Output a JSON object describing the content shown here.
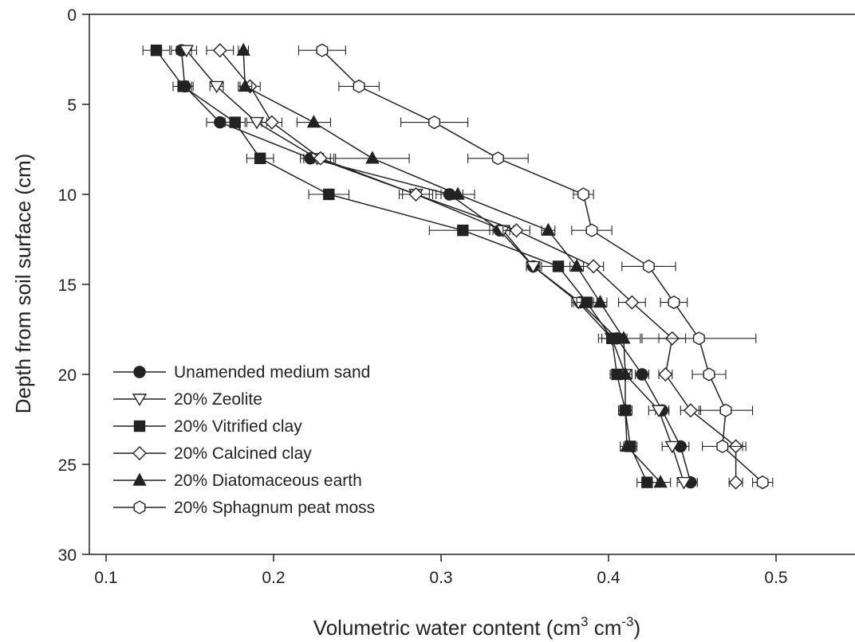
{
  "chart_data": {
    "type": "line",
    "title": "",
    "xlabel_main": "Volumetric water content (cm",
    "xlabel_sup1": "3",
    "xlabel_mid": " cm",
    "xlabel_sup2": "-3",
    "xlabel_end": ")",
    "ylabel": "Depth from soil surface (cm)",
    "xlim": [
      0.1,
      0.55
    ],
    "ylim": [
      0,
      30
    ],
    "y_inverted": true,
    "x_ticks": [
      0.1,
      0.2,
      0.3,
      0.4,
      0.5
    ],
    "x_tick_labels": [
      "0.1",
      "0.2",
      "0.3",
      "0.4",
      "0.5"
    ],
    "y_ticks": [
      0,
      5,
      10,
      15,
      20,
      25,
      30
    ],
    "y_tick_labels": [
      "0",
      "5",
      "10",
      "15",
      "20",
      "25",
      "30"
    ],
    "grid": false,
    "legend_position": "bottom-left",
    "depths": [
      2,
      4,
      6,
      8,
      10,
      12,
      14,
      16,
      18,
      20,
      22,
      24,
      26
    ],
    "series": [
      {
        "name": "Unamended medium sand",
        "marker": "circle",
        "filled": true,
        "values": [
          0.145,
          0.147,
          0.168,
          0.222,
          0.305,
          0.335,
          0.355,
          0.383,
          0.405,
          0.42,
          0.432,
          0.443,
          0.449
        ],
        "err": [
          0.006,
          0.004,
          0.008,
          0.006,
          0.008,
          0.006,
          0.004,
          0.004,
          0.006,
          0.004,
          0.004,
          0.005,
          0.004
        ]
      },
      {
        "name": "20% Zeolite",
        "marker": "triangle-down",
        "filled": false,
        "values": [
          0.148,
          0.166,
          0.19,
          0.226,
          0.285,
          0.337,
          0.355,
          0.382,
          0.402,
          0.41,
          0.43,
          0.438,
          0.445
        ],
        "err": [
          0.006,
          0.004,
          0.006,
          0.008,
          0.008,
          0.006,
          0.004,
          0.004,
          0.006,
          0.004,
          0.006,
          0.006,
          0.004
        ]
      },
      {
        "name": "20% Vitrified clay",
        "marker": "square",
        "filled": true,
        "values": [
          0.13,
          0.146,
          0.177,
          0.192,
          0.233,
          0.313,
          0.37,
          0.387,
          0.402,
          0.405,
          0.41,
          0.413,
          0.423
        ],
        "err": [
          0.008,
          0.006,
          0.006,
          0.008,
          0.012,
          0.02,
          0.01,
          0.006,
          0.008,
          0.004,
          0.004,
          0.004,
          0.006
        ]
      },
      {
        "name": "20% Calcined clay",
        "marker": "diamond",
        "filled": false,
        "values": [
          0.168,
          0.186,
          0.199,
          0.228,
          0.285,
          0.345,
          0.391,
          0.414,
          0.438,
          0.434,
          0.449,
          0.476,
          0.476
        ],
        "err": [
          0.008,
          0.006,
          0.006,
          0.008,
          0.01,
          0.008,
          0.006,
          0.008,
          0.008,
          0.004,
          0.006,
          0.006,
          0.004
        ]
      },
      {
        "name": "20% Diatomaceous earth",
        "marker": "triangle-up",
        "filled": true,
        "values": [
          0.182,
          0.183,
          0.224,
          0.259,
          0.31,
          0.364,
          0.381,
          0.395,
          0.409,
          0.41,
          0.41,
          0.411,
          0.431
        ],
        "err": [
          0.003,
          0.004,
          0.01,
          0.022,
          0.01,
          0.004,
          0.004,
          0.004,
          0.01,
          0.004,
          0.004,
          0.004,
          0.006
        ]
      },
      {
        "name": "20% Sphagnum peat moss",
        "marker": "hexagon",
        "filled": false,
        "values": [
          0.229,
          0.251,
          0.296,
          0.334,
          0.385,
          0.39,
          0.424,
          0.439,
          0.454,
          0.46,
          0.47,
          0.468,
          0.492
        ],
        "err": [
          0.014,
          0.012,
          0.02,
          0.018,
          0.006,
          0.012,
          0.016,
          0.008,
          0.034,
          0.01,
          0.016,
          0.012,
          0.006
        ]
      }
    ]
  }
}
